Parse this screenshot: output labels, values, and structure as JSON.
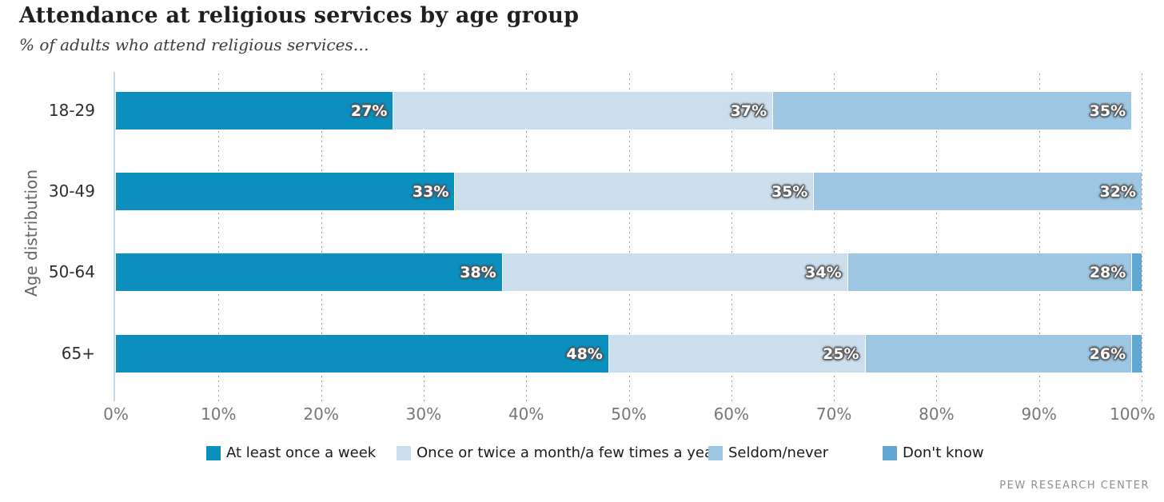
{
  "title": "Attendance at religious services by age group",
  "subtitle": "% of adults who attend religious services…",
  "source": "PEW RESEARCH CENTER",
  "colors": {
    "weekly": "#0a8fbe",
    "monthly_yearly": "#cadeee",
    "seldom_never": "#9cc6e1",
    "dont_know": "#60a8d2",
    "axis_line": "#c9d6e8",
    "gridline": "#9a9a9a"
  },
  "chart_data": {
    "type": "bar",
    "orientation": "horizontal",
    "stacked": true,
    "title": "Attendance at religious services by age group",
    "subtitle": "% of adults who attend religious services…",
    "xlabel": "",
    "ylabel": "Age distribution",
    "xlim": [
      0,
      100
    ],
    "grid": "dotted-vertical",
    "legend_position": "bottom",
    "categories": [
      "18-29",
      "30-49",
      "50-64",
      "65+"
    ],
    "series": [
      {
        "name": "At least once a week",
        "color": "#0a8fbe",
        "values": [
          27,
          33,
          38,
          48
        ],
        "labels": [
          "27%",
          "33%",
          "38%",
          "48%"
        ]
      },
      {
        "name": "Once or twice a month/a few times a year",
        "color": "#cadeee",
        "values": [
          37,
          35,
          34,
          25
        ],
        "labels": [
          "37%",
          "35%",
          "34%",
          "25%"
        ]
      },
      {
        "name": "Seldom/never",
        "color": "#9cc6e1",
        "values": [
          35,
          32,
          28,
          26
        ],
        "labels": [
          "35%",
          "32%",
          "28%",
          "26%"
        ]
      },
      {
        "name": "Don't know",
        "color": "#60a8d2",
        "values": [
          0,
          0,
          1,
          1
        ],
        "labels": [
          "",
          "",
          "",
          ""
        ]
      }
    ],
    "x_ticks": [
      "0%",
      "10%",
      "20%",
      "30%",
      "40%",
      "50%",
      "60%",
      "70%",
      "80%",
      "90%",
      "100%"
    ]
  }
}
